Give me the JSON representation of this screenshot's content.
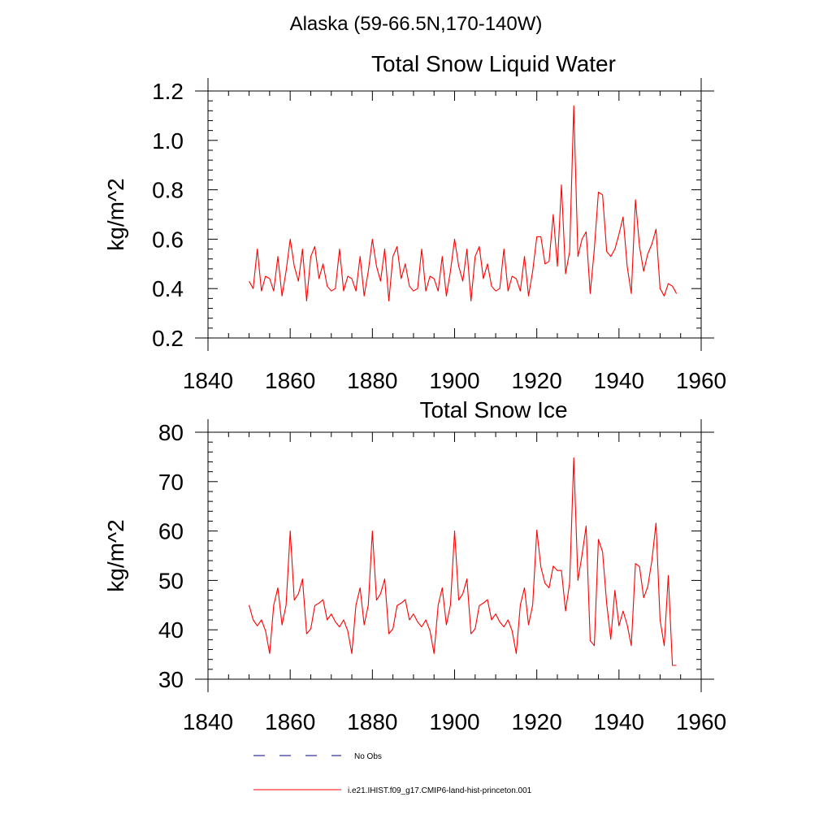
{
  "page": {
    "title": "Alaska (59-66.5N,170-140W)"
  },
  "legend": {
    "items": [
      {
        "label": "No Obs",
        "style": "dashed",
        "color": "#000080"
      },
      {
        "label": "i.e21.IHIST.f09_g17.CMIP6-land-hist-princeton.001",
        "style": "solid",
        "color": "#ff0000"
      }
    ]
  },
  "chart_data": [
    {
      "type": "line",
      "title": "Total Snow Liquid Water",
      "xlabel": "",
      "ylabel": "kg/m^2",
      "xlim": [
        1840,
        1960
      ],
      "ylim": [
        0.2,
        1.2
      ],
      "xticks": [
        1840,
        1860,
        1880,
        1900,
        1920,
        1940,
        1960
      ],
      "yticks": [
        0.2,
        0.4,
        0.6,
        0.8,
        1.0,
        1.2
      ],
      "ytick_labels": [
        "0.2",
        "0.4",
        "0.6",
        "0.8",
        "1.0",
        "1.2"
      ],
      "grid": false,
      "series": [
        {
          "color": "#ff0000",
          "x": [
            1850,
            1851,
            1852,
            1853,
            1854,
            1855,
            1856,
            1857,
            1858,
            1859,
            1860,
            1861,
            1862,
            1863,
            1864,
            1865,
            1866,
            1867,
            1868,
            1869,
            1870,
            1871,
            1872,
            1873,
            1874,
            1875,
            1876,
            1877,
            1878,
            1879,
            1880,
            1881,
            1882,
            1883,
            1884,
            1885,
            1886,
            1887,
            1888,
            1889,
            1890,
            1891,
            1892,
            1893,
            1894,
            1895,
            1896,
            1897,
            1898,
            1899,
            1900,
            1901,
            1902,
            1903,
            1904,
            1905,
            1906,
            1907,
            1908,
            1909,
            1910,
            1911,
            1912,
            1913,
            1914,
            1915,
            1916,
            1917,
            1918,
            1919,
            1920,
            1921,
            1922,
            1923,
            1924,
            1925,
            1926,
            1927,
            1928,
            1929,
            1930,
            1931,
            1932,
            1933,
            1934,
            1935,
            1936,
            1937,
            1938,
            1939,
            1940,
            1941,
            1942,
            1943,
            1944,
            1945,
            1946,
            1947,
            1948,
            1949,
            1950,
            1951,
            1952,
            1953,
            1954
          ],
          "values": [
            0.43,
            0.4,
            0.56,
            0.39,
            0.45,
            0.44,
            0.39,
            0.53,
            0.37,
            0.47,
            0.6,
            0.49,
            0.43,
            0.56,
            0.35,
            0.53,
            0.57,
            0.44,
            0.5,
            0.41,
            0.39,
            0.4,
            0.56,
            0.39,
            0.45,
            0.44,
            0.39,
            0.53,
            0.37,
            0.47,
            0.6,
            0.49,
            0.43,
            0.56,
            0.35,
            0.53,
            0.57,
            0.44,
            0.5,
            0.41,
            0.39,
            0.4,
            0.56,
            0.39,
            0.45,
            0.44,
            0.39,
            0.53,
            0.37,
            0.47,
            0.6,
            0.49,
            0.43,
            0.56,
            0.35,
            0.53,
            0.57,
            0.44,
            0.5,
            0.41,
            0.39,
            0.4,
            0.56,
            0.39,
            0.45,
            0.44,
            0.39,
            0.53,
            0.37,
            0.47,
            0.61,
            0.61,
            0.5,
            0.51,
            0.7,
            0.49,
            0.82,
            0.46,
            0.55,
            1.14,
            0.53,
            0.6,
            0.63,
            0.38,
            0.56,
            0.79,
            0.78,
            0.55,
            0.53,
            0.56,
            0.62,
            0.69,
            0.49,
            0.38,
            0.76,
            0.57,
            0.47,
            0.54,
            0.58,
            0.64,
            0.4,
            0.37,
            0.42,
            0.41,
            0.38
          ]
        }
      ]
    },
    {
      "type": "line",
      "title": "Total Snow Ice",
      "xlabel": "",
      "ylabel": "kg/m^2",
      "xlim": [
        1840,
        1960
      ],
      "ylim": [
        30,
        80
      ],
      "xticks": [
        1840,
        1860,
        1880,
        1900,
        1920,
        1940,
        1960
      ],
      "yticks": [
        30,
        40,
        50,
        60,
        70,
        80
      ],
      "ytick_labels": [
        "30",
        "40",
        "50",
        "60",
        "70",
        "80"
      ],
      "grid": false,
      "series": [
        {
          "color": "#ff0000",
          "x": [
            1850,
            1851,
            1852,
            1853,
            1854,
            1855,
            1856,
            1857,
            1858,
            1859,
            1860,
            1861,
            1862,
            1863,
            1864,
            1865,
            1866,
            1867,
            1868,
            1869,
            1870,
            1871,
            1872,
            1873,
            1874,
            1875,
            1876,
            1877,
            1878,
            1879,
            1880,
            1881,
            1882,
            1883,
            1884,
            1885,
            1886,
            1887,
            1888,
            1889,
            1890,
            1891,
            1892,
            1893,
            1894,
            1895,
            1896,
            1897,
            1898,
            1899,
            1900,
            1901,
            1902,
            1903,
            1904,
            1905,
            1906,
            1907,
            1908,
            1909,
            1910,
            1911,
            1912,
            1913,
            1914,
            1915,
            1916,
            1917,
            1918,
            1919,
            1920,
            1921,
            1922,
            1923,
            1924,
            1925,
            1926,
            1927,
            1928,
            1929,
            1930,
            1931,
            1932,
            1933,
            1934,
            1935,
            1936,
            1937,
            1938,
            1939,
            1940,
            1941,
            1942,
            1943,
            1944,
            1945,
            1946,
            1947,
            1948,
            1949,
            1950,
            1951,
            1952,
            1953,
            1954
          ],
          "values": [
            45,
            42,
            40.8,
            42,
            39.8,
            35.2,
            45,
            48.5,
            41,
            45,
            60,
            46,
            47.3,
            50.3,
            39.2,
            40.2,
            44.9,
            45.4,
            46.1,
            42,
            43.2,
            41.6,
            40.6,
            42,
            39.8,
            35.2,
            45,
            48.5,
            41,
            45,
            60,
            46,
            47.3,
            50.3,
            39.2,
            40.2,
            44.9,
            45.4,
            46.1,
            42,
            43.2,
            41.6,
            40.6,
            42,
            39.8,
            35.2,
            45,
            48.5,
            41,
            45,
            60,
            46,
            47.3,
            50.3,
            39.2,
            40.2,
            44.9,
            45.4,
            46.1,
            42,
            43.2,
            41.6,
            40.6,
            42,
            39.8,
            35.2,
            45,
            48.5,
            41,
            45,
            60.2,
            52.7,
            49.4,
            48.5,
            52.9,
            52,
            52,
            43.8,
            49.5,
            74.8,
            50,
            55.1,
            61,
            37.8,
            36.8,
            58.3,
            55.8,
            45.3,
            38.1,
            48,
            40.8,
            43.8,
            41,
            36.8,
            53.4,
            52.8,
            46.5,
            48.7,
            54,
            61.6,
            42,
            36.8,
            51,
            32.8,
            32.8
          ]
        }
      ]
    }
  ]
}
